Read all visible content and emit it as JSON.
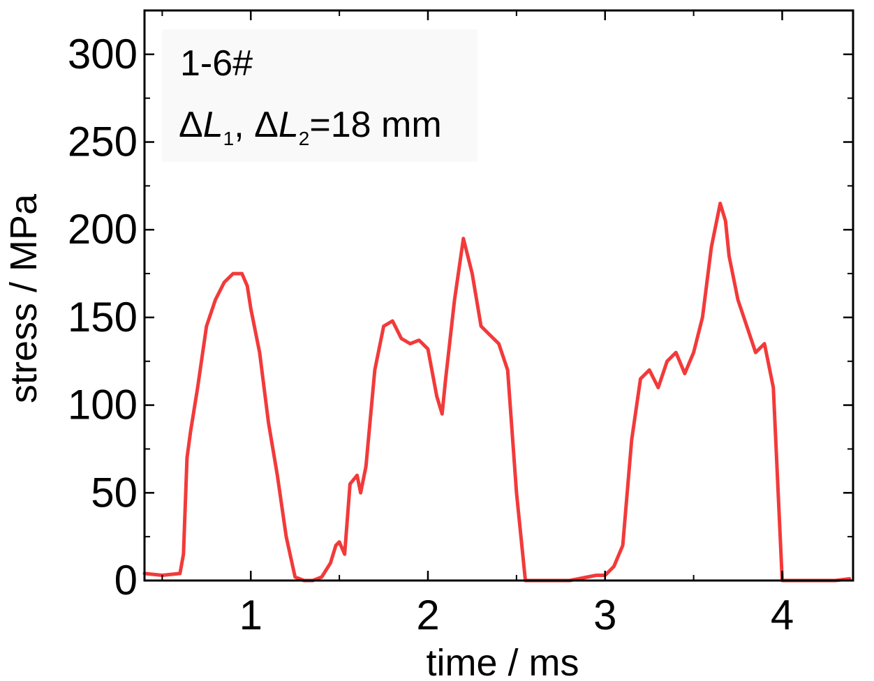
{
  "chart_data": {
    "type": "line",
    "xlabel": "time / ms",
    "ylabel": "stress / MPa",
    "xlim": [
      0.4,
      4.4
    ],
    "ylim": [
      0,
      325
    ],
    "xticks": [
      1,
      2,
      3,
      4
    ],
    "xtick_labels": [
      "1",
      "2",
      "3",
      "4"
    ],
    "yticks": [
      0,
      50,
      100,
      150,
      200,
      250,
      300
    ],
    "ytick_labels": [
      "0",
      "50",
      "100",
      "150",
      "200",
      "250",
      "300"
    ],
    "grid": false,
    "annotations": {
      "sample": "1-6#",
      "delta_l_prefix": "Δ",
      "delta_l_var": "L",
      "delta_l1_sub": "1",
      "delta_l_sep": ", ",
      "delta_l2_sub": "2",
      "delta_l_value": "=18 mm"
    },
    "series": [
      {
        "color": "#f23a3a",
        "x": [
          0.4,
          0.5,
          0.6,
          0.62,
          0.64,
          0.66,
          0.7,
          0.75,
          0.8,
          0.85,
          0.9,
          0.95,
          0.98,
          1.0,
          1.05,
          1.1,
          1.15,
          1.2,
          1.25,
          1.3,
          1.35,
          1.4,
          1.45,
          1.48,
          1.5,
          1.53,
          1.56,
          1.6,
          1.62,
          1.65,
          1.7,
          1.75,
          1.8,
          1.85,
          1.9,
          1.95,
          2.0,
          2.05,
          2.08,
          2.1,
          2.15,
          2.2,
          2.25,
          2.3,
          2.35,
          2.4,
          2.45,
          2.5,
          2.55,
          2.6,
          2.7,
          2.8,
          2.9,
          2.95,
          3.0,
          3.05,
          3.1,
          3.15,
          3.2,
          3.25,
          3.3,
          3.35,
          3.4,
          3.45,
          3.5,
          3.55,
          3.6,
          3.65,
          3.68,
          3.7,
          3.75,
          3.8,
          3.85,
          3.9,
          3.95,
          4.0,
          4.1,
          4.2,
          4.3,
          4.38
        ],
        "y": [
          4,
          3,
          4,
          15,
          70,
          85,
          110,
          145,
          160,
          170,
          175,
          175,
          168,
          155,
          130,
          90,
          60,
          25,
          2,
          0,
          0,
          2,
          10,
          20,
          22,
          15,
          55,
          60,
          50,
          65,
          120,
          145,
          148,
          138,
          135,
          137,
          132,
          105,
          95,
          115,
          160,
          195,
          175,
          145,
          140,
          135,
          120,
          50,
          0,
          0,
          0,
          0,
          2,
          3,
          3,
          8,
          20,
          80,
          115,
          120,
          110,
          125,
          130,
          118,
          130,
          150,
          190,
          215,
          205,
          185,
          160,
          145,
          130,
          135,
          110,
          0,
          0,
          0,
          0,
          1
        ]
      }
    ]
  }
}
